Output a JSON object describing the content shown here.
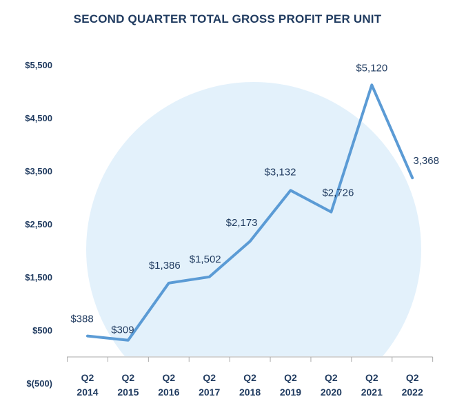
{
  "chart_data": {
    "type": "line",
    "title": "SECOND QUARTER TOTAL GROSS PROFIT PER UNIT",
    "xlabel": "",
    "ylabel": "",
    "categories": [
      [
        "Q2",
        "2014"
      ],
      [
        "Q2",
        "2015"
      ],
      [
        "Q2",
        "2016"
      ],
      [
        "Q2",
        "2017"
      ],
      [
        "Q2",
        "2018"
      ],
      [
        "Q2",
        "2019"
      ],
      [
        "Q2",
        "2020"
      ],
      [
        "Q2",
        "2021"
      ],
      [
        "Q2",
        "2022"
      ]
    ],
    "series": [
      {
        "values": [
          388,
          309,
          1386,
          1502,
          2173,
          3132,
          2726,
          5120,
          3368
        ],
        "labels": [
          "$388",
          "$309",
          "$1,386",
          "$1,502",
          "$2,173",
          "$3,132",
          "$2,726",
          "$5,120",
          "3,368"
        ]
      }
    ],
    "yticks": [
      -500,
      500,
      1500,
      2500,
      3500,
      4500,
      5500
    ],
    "ytick_labels": [
      "$(500)",
      "$500",
      "$1,500",
      "$2,500",
      "$3,500",
      "$4,500",
      "$5,500"
    ],
    "ylim": [
      -500,
      5500
    ],
    "grid": false,
    "legend": "none",
    "colors": {
      "line": "#5b9bd5",
      "background_circle": "#e3f1fb",
      "text": "#1f3a5f",
      "axis": "#aaaaaa"
    }
  }
}
